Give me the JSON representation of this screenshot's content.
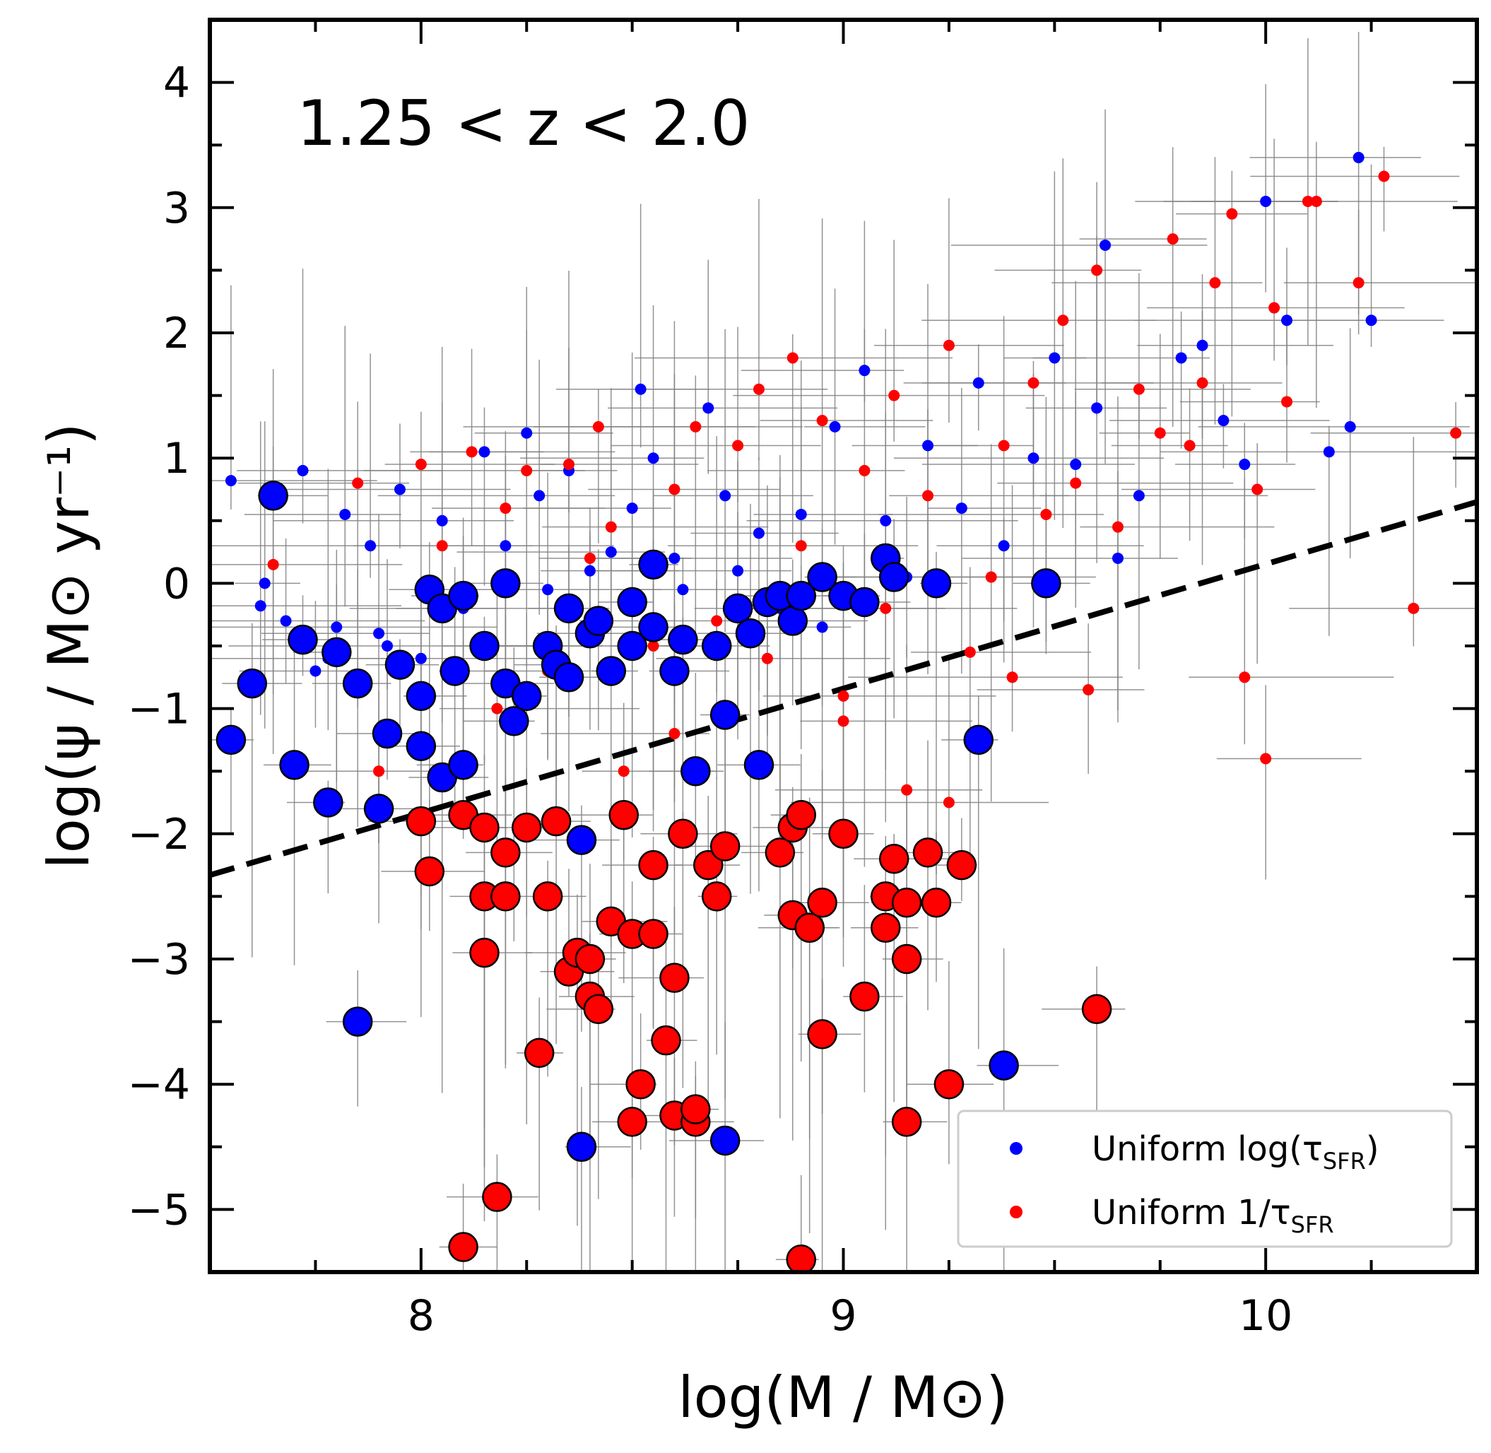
{
  "chart_data": {
    "type": "scatter",
    "title": "",
    "annotation": "1.25 < z < 2.0",
    "xlabel": "log(M / M⊙)",
    "ylabel": "log(ψ / M⊙ yr⁻¹)",
    "xlim": [
      7.5,
      10.5
    ],
    "ylim": [
      -5.5,
      4.5
    ],
    "xticks": [
      8,
      9,
      10
    ],
    "xtick_labels": [
      "8",
      "9",
      "10"
    ],
    "yticks": [
      -5,
      -4,
      -3,
      -2,
      -1,
      0,
      1,
      2,
      3,
      4
    ],
    "ytick_labels": [
      "−5",
      "−4",
      "−3",
      "−2",
      "−1",
      "0",
      "1",
      "2",
      "3",
      "4"
    ],
    "grid": false,
    "legend_position": "bottom-right",
    "reference_line": {
      "style": "dashed",
      "color": "#000000",
      "x": [
        7.5,
        10.5
      ],
      "y": [
        -2.33,
        0.65
      ]
    },
    "colors": {
      "blue": "#0000ff",
      "red": "#ff0000",
      "errorbar": "#808080",
      "edge": "#000000"
    },
    "series": [
      {
        "name": "Uniform log(τSFR)",
        "legend_main": "Uniform log(τ",
        "legend_sub": "SFR",
        "legend_close": ")",
        "color": "#0000ff",
        "small_points": [
          [
            7.55,
            0.82
          ],
          [
            7.63,
            0.0
          ],
          [
            7.68,
            -0.3
          ],
          [
            7.72,
            0.9
          ],
          [
            7.75,
            -0.7
          ],
          [
            7.78,
            -0.6
          ],
          [
            7.8,
            -0.35
          ],
          [
            7.82,
            0.55
          ],
          [
            7.88,
            0.3
          ],
          [
            7.92,
            -0.5
          ],
          [
            7.95,
            0.75
          ],
          [
            8.05,
            0.5
          ],
          [
            8.1,
            -0.2
          ],
          [
            8.15,
            1.05
          ],
          [
            8.2,
            0.3
          ],
          [
            8.28,
            0.7
          ],
          [
            8.35,
            0.9
          ],
          [
            8.4,
            0.1
          ],
          [
            8.5,
            0.6
          ],
          [
            8.52,
            1.55
          ],
          [
            8.6,
            0.2
          ],
          [
            8.68,
            1.4
          ],
          [
            8.72,
            0.7
          ],
          [
            8.8,
            0.4
          ],
          [
            8.9,
            0.55
          ],
          [
            8.98,
            1.25
          ],
          [
            9.05,
            1.7
          ],
          [
            9.1,
            0.5
          ],
          [
            9.2,
            1.1
          ],
          [
            9.32,
            1.6
          ],
          [
            9.38,
            0.3
          ],
          [
            9.45,
            1.0
          ],
          [
            9.5,
            1.8
          ],
          [
            9.55,
            0.95
          ],
          [
            9.6,
            1.4
          ],
          [
            9.62,
            2.7
          ],
          [
            9.65,
            0.2
          ],
          [
            9.7,
            0.7
          ],
          [
            9.8,
            1.8
          ],
          [
            9.85,
            1.9
          ],
          [
            9.9,
            1.3
          ],
          [
            9.95,
            0.95
          ],
          [
            10.0,
            3.05
          ],
          [
            10.05,
            2.1
          ],
          [
            10.15,
            1.05
          ],
          [
            10.2,
            1.25
          ],
          [
            10.22,
            3.4
          ],
          [
            10.25,
            2.1
          ],
          [
            7.62,
            -0.18
          ],
          [
            7.9,
            -0.4
          ],
          [
            8.0,
            -0.6
          ],
          [
            8.3,
            -0.05
          ],
          [
            8.45,
            0.25
          ],
          [
            8.62,
            -0.05
          ],
          [
            8.75,
            0.1
          ],
          [
            8.85,
            -0.2
          ],
          [
            8.95,
            -0.35
          ],
          [
            9.15,
            0.05
          ],
          [
            9.28,
            0.6
          ],
          [
            8.55,
            1.0
          ],
          [
            8.25,
            1.2
          ]
        ],
        "large_points": [
          [
            7.55,
            -1.25
          ],
          [
            7.6,
            -0.8
          ],
          [
            7.65,
            0.7
          ],
          [
            7.7,
            -1.45
          ],
          [
            7.72,
            -0.45
          ],
          [
            7.78,
            -1.75
          ],
          [
            7.8,
            -0.55
          ],
          [
            7.85,
            -0.8
          ],
          [
            7.85,
            -3.5
          ],
          [
            7.9,
            -1.8
          ],
          [
            7.92,
            -1.2
          ],
          [
            7.95,
            -0.65
          ],
          [
            8.0,
            -0.9
          ],
          [
            8.0,
            -1.3
          ],
          [
            8.02,
            -0.05
          ],
          [
            8.05,
            -0.2
          ],
          [
            8.05,
            -1.55
          ],
          [
            8.08,
            -0.7
          ],
          [
            8.1,
            -0.1
          ],
          [
            8.1,
            -1.45
          ],
          [
            8.15,
            -0.5
          ],
          [
            8.2,
            -0.8
          ],
          [
            8.2,
            0.0
          ],
          [
            8.22,
            -1.1
          ],
          [
            8.25,
            -0.9
          ],
          [
            8.3,
            -0.5
          ],
          [
            8.32,
            -0.65
          ],
          [
            8.35,
            -0.2
          ],
          [
            8.35,
            -0.75
          ],
          [
            8.38,
            -2.05
          ],
          [
            8.38,
            -4.5
          ],
          [
            8.4,
            -0.4
          ],
          [
            8.42,
            -0.3
          ],
          [
            8.45,
            -0.7
          ],
          [
            8.5,
            -0.15
          ],
          [
            8.5,
            -0.5
          ],
          [
            8.55,
            0.15
          ],
          [
            8.55,
            -0.35
          ],
          [
            8.6,
            -0.7
          ],
          [
            8.62,
            -0.45
          ],
          [
            8.65,
            -1.5
          ],
          [
            8.7,
            -0.5
          ],
          [
            8.72,
            -1.05
          ],
          [
            8.72,
            -4.45
          ],
          [
            8.75,
            -0.2
          ],
          [
            8.78,
            -0.4
          ],
          [
            8.8,
            -1.45
          ],
          [
            8.82,
            -0.15
          ],
          [
            8.85,
            -0.1
          ],
          [
            8.88,
            -0.3
          ],
          [
            8.9,
            -0.1
          ],
          [
            8.92,
            -2.75
          ],
          [
            8.95,
            0.05
          ],
          [
            9.0,
            -0.1
          ],
          [
            9.05,
            -0.15
          ],
          [
            9.1,
            0.2
          ],
          [
            9.12,
            0.05
          ],
          [
            9.22,
            0.0
          ],
          [
            9.32,
            -1.25
          ],
          [
            9.38,
            -3.85
          ],
          [
            9.48,
            0.0
          ]
        ]
      },
      {
        "name": "Uniform 1/τSFR",
        "legend_main": "Uniform 1/τ",
        "legend_sub": "SFR",
        "legend_close": "",
        "color": "#ff0000",
        "small_points": [
          [
            7.65,
            0.15
          ],
          [
            7.85,
            0.8
          ],
          [
            7.9,
            -1.5
          ],
          [
            8.0,
            0.95
          ],
          [
            8.05,
            0.3
          ],
          [
            8.12,
            1.05
          ],
          [
            8.18,
            -1.0
          ],
          [
            8.2,
            0.6
          ],
          [
            8.25,
            0.9
          ],
          [
            8.3,
            -0.7
          ],
          [
            8.35,
            0.95
          ],
          [
            8.42,
            1.25
          ],
          [
            8.45,
            0.45
          ],
          [
            8.48,
            -1.5
          ],
          [
            8.55,
            -0.5
          ],
          [
            8.6,
            0.75
          ],
          [
            8.65,
            1.25
          ],
          [
            8.7,
            -0.3
          ],
          [
            8.75,
            1.1
          ],
          [
            8.8,
            1.55
          ],
          [
            8.82,
            -0.6
          ],
          [
            8.88,
            1.8
          ],
          [
            8.9,
            0.3
          ],
          [
            8.95,
            1.3
          ],
          [
            9.0,
            -1.1
          ],
          [
            9.05,
            0.9
          ],
          [
            9.1,
            -0.2
          ],
          [
            9.12,
            1.5
          ],
          [
            9.15,
            -1.65
          ],
          [
            9.2,
            0.7
          ],
          [
            9.25,
            1.9
          ],
          [
            9.3,
            -0.55
          ],
          [
            9.35,
            0.05
          ],
          [
            9.38,
            1.1
          ],
          [
            9.4,
            -0.75
          ],
          [
            9.45,
            1.6
          ],
          [
            9.48,
            0.55
          ],
          [
            9.52,
            2.1
          ],
          [
            9.55,
            0.8
          ],
          [
            9.58,
            -0.85
          ],
          [
            9.6,
            2.5
          ],
          [
            9.65,
            0.45
          ],
          [
            9.7,
            1.55
          ],
          [
            9.75,
            1.2
          ],
          [
            9.78,
            2.75
          ],
          [
            9.82,
            1.1
          ],
          [
            9.85,
            1.6
          ],
          [
            9.88,
            2.4
          ],
          [
            9.92,
            2.95
          ],
          [
            9.95,
            -0.75
          ],
          [
            9.98,
            0.75
          ],
          [
            10.0,
            -1.4
          ],
          [
            10.02,
            2.2
          ],
          [
            10.05,
            1.45
          ],
          [
            10.1,
            3.05
          ],
          [
            10.12,
            3.05
          ],
          [
            10.22,
            2.4
          ],
          [
            10.28,
            3.25
          ],
          [
            10.35,
            -0.2
          ],
          [
            10.45,
            1.2
          ],
          [
            9.25,
            -1.75
          ],
          [
            9.0,
            -0.9
          ],
          [
            8.6,
            -1.2
          ],
          [
            8.4,
            0.2
          ]
        ],
        "large_points": [
          [
            8.0,
            -1.9
          ],
          [
            8.02,
            -2.3
          ],
          [
            8.1,
            -5.3
          ],
          [
            8.1,
            -1.85
          ],
          [
            8.15,
            -2.5
          ],
          [
            8.15,
            -2.95
          ],
          [
            8.15,
            -1.95
          ],
          [
            8.18,
            -4.9
          ],
          [
            8.2,
            -2.15
          ],
          [
            8.2,
            -2.5
          ],
          [
            8.25,
            -1.95
          ],
          [
            8.28,
            -3.75
          ],
          [
            8.3,
            -2.5
          ],
          [
            8.32,
            -1.9
          ],
          [
            8.35,
            -3.1
          ],
          [
            8.37,
            -2.95
          ],
          [
            8.4,
            -3.3
          ],
          [
            8.4,
            -3.0
          ],
          [
            8.42,
            -3.4
          ],
          [
            8.45,
            -2.7
          ],
          [
            8.48,
            -1.85
          ],
          [
            8.5,
            -2.8
          ],
          [
            8.5,
            -4.3
          ],
          [
            8.52,
            -4.0
          ],
          [
            8.55,
            -2.25
          ],
          [
            8.55,
            -2.8
          ],
          [
            8.58,
            -3.65
          ],
          [
            8.6,
            -3.15
          ],
          [
            8.6,
            -4.25
          ],
          [
            8.62,
            -2.0
          ],
          [
            8.65,
            -4.3
          ],
          [
            8.65,
            -4.2
          ],
          [
            8.68,
            -2.25
          ],
          [
            8.7,
            -2.5
          ],
          [
            8.72,
            -2.1
          ],
          [
            8.85,
            -2.15
          ],
          [
            8.88,
            -2.65
          ],
          [
            8.88,
            -1.95
          ],
          [
            8.9,
            -5.4
          ],
          [
            8.9,
            -1.85
          ],
          [
            8.92,
            -2.75
          ],
          [
            8.95,
            -2.55
          ],
          [
            8.95,
            -3.6
          ],
          [
            9.0,
            -2.0
          ],
          [
            9.05,
            -3.3
          ],
          [
            9.1,
            -2.5
          ],
          [
            9.1,
            -2.75
          ],
          [
            9.12,
            -2.2
          ],
          [
            9.15,
            -2.55
          ],
          [
            9.15,
            -3.0
          ],
          [
            9.15,
            -4.3
          ],
          [
            9.2,
            -2.15
          ],
          [
            9.22,
            -2.55
          ],
          [
            9.25,
            -4.0
          ],
          [
            9.28,
            -2.25
          ],
          [
            9.6,
            -3.4
          ]
        ]
      }
    ]
  }
}
